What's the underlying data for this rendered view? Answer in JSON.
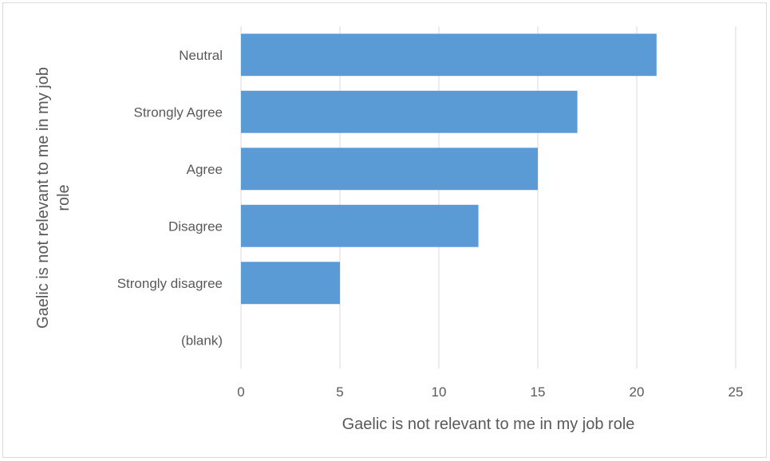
{
  "chart_data": {
    "type": "bar",
    "orientation": "horizontal",
    "categories": [
      "Neutral",
      "Strongly Agree",
      "Agree",
      "Disagree",
      "Strongly disagree",
      "(blank)"
    ],
    "values": [
      21,
      17,
      15,
      12,
      5,
      null
    ],
    "xlim": [
      0,
      25
    ],
    "xticks": [
      0,
      5,
      10,
      15,
      20,
      25
    ],
    "xlabel": "Gaelic is not relevant to me in my job role",
    "ylabel": "Gaelic is not relevant to me in my job role",
    "grid": "vertical",
    "legend": "none",
    "bar_color": "#5b9bd5",
    "grid_color": "#d9d9d9",
    "text_color": "#595959"
  }
}
